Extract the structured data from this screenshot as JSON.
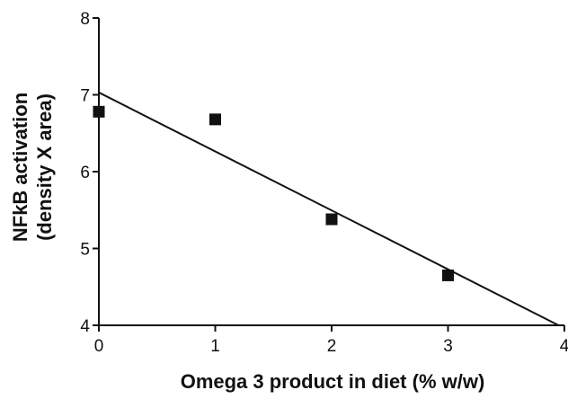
{
  "chart_data": {
    "type": "scatter",
    "title": "",
    "xlabel": "Omega 3 product in diet (% w/w)",
    "ylabel_line1": "NFkB activation",
    "ylabel_line2": "(density X area)",
    "xlim": [
      0,
      4
    ],
    "ylim": [
      4,
      8
    ],
    "x_ticks": [
      0,
      1,
      2,
      3,
      4
    ],
    "y_ticks": [
      4,
      5,
      6,
      7,
      8
    ],
    "grid": false,
    "legend": "none",
    "series": [
      {
        "points": [
          {
            "x": 0,
            "y": 6.78
          },
          {
            "x": 1,
            "y": 6.68
          },
          {
            "x": 2,
            "y": 5.38
          },
          {
            "x": 3,
            "y": 4.65
          }
        ]
      }
    ],
    "fit_line": {
      "x_start": 0,
      "y_start": 7.03,
      "x_end": 3.95,
      "y_end": 4.0
    },
    "colors": {
      "axis": "#111111",
      "marker": "#111111",
      "line": "#111111"
    }
  }
}
